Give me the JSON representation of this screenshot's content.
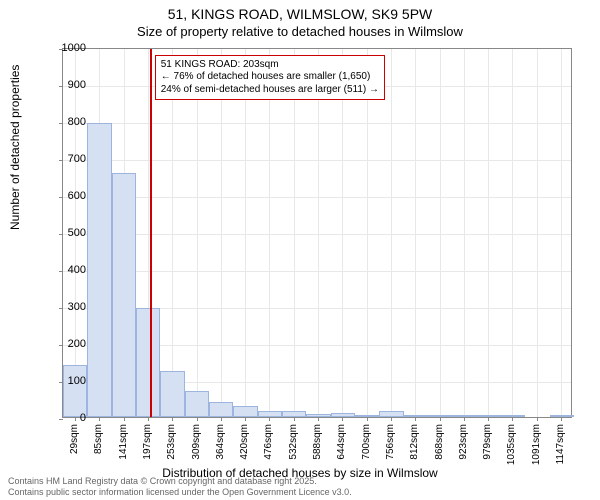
{
  "title_main": "51, KINGS ROAD, WILMSLOW, SK9 5PW",
  "title_sub": "Size of property relative to detached houses in Wilmslow",
  "title_fontsize": 14,
  "subtitle_fontsize": 13,
  "ylabel": "Number of detached properties",
  "xlabel": "Distribution of detached houses by size in Wilmslow",
  "label_fontsize": 12,
  "tick_fontsize": 11,
  "chart": {
    "type": "histogram",
    "background_color": "#ffffff",
    "grid_color": "#e8e8e8",
    "border_color": "#888888",
    "bar_fill": "#d5e0f2",
    "bar_stroke": "#9db5de",
    "marker_color": "#cc0000",
    "ylim": [
      0,
      1000
    ],
    "ytick_step": 100,
    "yticks": [
      0,
      100,
      200,
      300,
      400,
      500,
      600,
      700,
      800,
      900,
      1000
    ],
    "xticks": [
      "29sqm",
      "85sqm",
      "141sqm",
      "197sqm",
      "253sqm",
      "309sqm",
      "364sqm",
      "420sqm",
      "476sqm",
      "532sqm",
      "588sqm",
      "644sqm",
      "700sqm",
      "756sqm",
      "812sqm",
      "868sqm",
      "923sqm",
      "979sqm",
      "1035sqm",
      "1091sqm",
      "1147sqm"
    ],
    "xtick_values": [
      29,
      85,
      141,
      197,
      253,
      309,
      364,
      420,
      476,
      532,
      588,
      644,
      700,
      756,
      812,
      868,
      923,
      979,
      1035,
      1091,
      1147
    ],
    "x_range": [
      1,
      1175
    ],
    "bin_width": 56,
    "bins": [
      {
        "start": 1,
        "count": 140
      },
      {
        "start": 57,
        "count": 795
      },
      {
        "start": 113,
        "count": 660
      },
      {
        "start": 169,
        "count": 295
      },
      {
        "start": 225,
        "count": 125
      },
      {
        "start": 281,
        "count": 70
      },
      {
        "start": 337,
        "count": 40
      },
      {
        "start": 393,
        "count": 30
      },
      {
        "start": 449,
        "count": 15
      },
      {
        "start": 505,
        "count": 15
      },
      {
        "start": 561,
        "count": 8
      },
      {
        "start": 617,
        "count": 12
      },
      {
        "start": 673,
        "count": 5
      },
      {
        "start": 729,
        "count": 15
      },
      {
        "start": 785,
        "count": 3
      },
      {
        "start": 841,
        "count": 3
      },
      {
        "start": 897,
        "count": 2
      },
      {
        "start": 953,
        "count": 2
      },
      {
        "start": 1009,
        "count": 2
      },
      {
        "start": 1065,
        "count": 0
      },
      {
        "start": 1121,
        "count": 3
      }
    ],
    "marker_value": 203,
    "annotation": {
      "line1": "51 KINGS ROAD: 203sqm",
      "line2": "← 76% of detached houses are smaller (1,650)",
      "line3": "24% of semi-detached houses are larger (511) →",
      "border_color": "#cc0000",
      "fontsize": 10,
      "x": 203,
      "y_top": 985
    }
  },
  "footer": {
    "line1": "Contains HM Land Registry data © Crown copyright and database right 2025.",
    "line2": "Contains public sector information licensed under the Open Government Licence v3.0.",
    "color": "#666666",
    "fontsize": 9
  }
}
